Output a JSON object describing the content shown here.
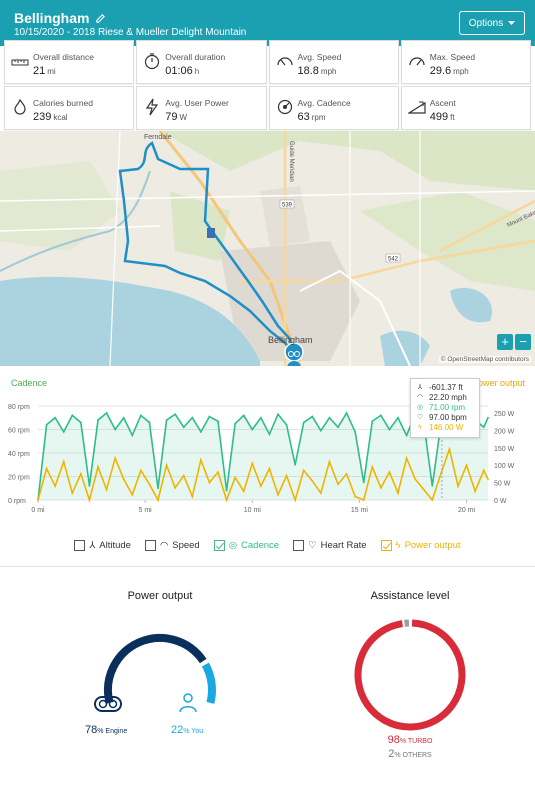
{
  "header": {
    "title": "Bellingham",
    "subtitle": "10/15/2020 - 2018 Riese & Mueller Delight Mountain",
    "options_label": "Options"
  },
  "stats": [
    {
      "icon": "ruler-icon",
      "label": "Overall distance",
      "value": "21",
      "unit": "mi"
    },
    {
      "icon": "stopwatch-icon",
      "label": "Overall duration",
      "value": "01:06",
      "unit": "h"
    },
    {
      "icon": "speedometer-icon",
      "label": "Avg. Speed",
      "value": "18.8",
      "unit": "mph"
    },
    {
      "icon": "speedometer-fast-icon",
      "label": "Max. Speed",
      "value": "29.6",
      "unit": "mph"
    },
    {
      "icon": "flame-icon",
      "label": "Calories burned",
      "value": "239",
      "unit": "kcal"
    },
    {
      "icon": "lightning-icon",
      "label": "Avg. User Power",
      "value": "79",
      "unit": "W"
    },
    {
      "icon": "cadence-icon",
      "label": "Avg. Cadence",
      "value": "63",
      "unit": "rpm"
    },
    {
      "icon": "ascent-icon",
      "label": "Ascent",
      "value": "499",
      "unit": "ft"
    }
  ],
  "map": {
    "attribution": "© OpenStreetMap contributors",
    "place_labels": [
      "Ferndale",
      "Bellingham",
      "Guide Meridian",
      "Mount Baker Hwy"
    ],
    "road_shields": [
      "539",
      "542"
    ],
    "zoom_in": "+",
    "zoom_out": "−"
  },
  "chart": {
    "left_title": "Cadence",
    "right_title": "Power output",
    "tooltip": [
      {
        "icon": "altitude-icon",
        "text": "-601.37 ft",
        "color": "#333333"
      },
      {
        "icon": "speed-icon",
        "text": "22.20 mph",
        "color": "#333333"
      },
      {
        "icon": "cadence-icon",
        "text": "71.00 rpm",
        "color": "#2ebd8a"
      },
      {
        "icon": "heart-icon",
        "text": "97.00 bpm",
        "color": "#333333"
      },
      {
        "icon": "lightning-icon",
        "text": "146.00 W",
        "color": "#f0b400"
      }
    ]
  },
  "chart_data": {
    "type": "line",
    "x_ticks": [
      "0 mi",
      "5 mi",
      "10 mi",
      "15 mi",
      "20 mi"
    ],
    "y_left_ticks": [
      "80 rpm",
      "60 rpm",
      "40 rpm",
      "20 rpm",
      "0 rpm"
    ],
    "y_right_ticks": [
      "250 W",
      "200 W",
      "150 W",
      "100 W",
      "50 W",
      "0 W"
    ],
    "xlim": [
      0,
      21
    ],
    "ylim_left": [
      0,
      80
    ],
    "ylim_right": [
      0,
      270
    ],
    "series": [
      {
        "name": "Cadence",
        "color": "#2ebd8a",
        "x": [
          0,
          0.4,
          0.8,
          1.2,
          1.6,
          2,
          2.4,
          2.8,
          3.2,
          3.6,
          4,
          4.4,
          4.8,
          5.2,
          5.6,
          6,
          6.4,
          6.8,
          7.2,
          7.6,
          8,
          8.4,
          8.8,
          9.2,
          9.6,
          10,
          10.4,
          10.8,
          11.2,
          11.6,
          12,
          12.4,
          12.8,
          13.2,
          13.6,
          14,
          14.4,
          14.8,
          15.2,
          15.6,
          16,
          16.4,
          16.8,
          17.2,
          17.6,
          18,
          18.4,
          18.8,
          19.2,
          19.6,
          20,
          20.4,
          20.8,
          21
        ],
        "y": [
          0,
          64,
          70,
          58,
          72,
          66,
          12,
          68,
          74,
          60,
          70,
          55,
          72,
          66,
          10,
          68,
          73,
          62,
          70,
          58,
          71,
          67,
          8,
          65,
          72,
          60,
          70,
          56,
          73,
          64,
          30,
          66,
          71,
          59,
          70,
          62,
          74,
          58,
          15,
          67,
          72,
          60,
          70,
          55,
          73,
          66,
          12,
          64,
          75,
          58,
          70,
          68,
          62,
          70
        ]
      },
      {
        "name": "Power output",
        "color": "#f0b400",
        "x": [
          0,
          0.4,
          0.8,
          1.2,
          1.6,
          2,
          2.4,
          2.8,
          3.2,
          3.6,
          4,
          4.4,
          4.8,
          5.2,
          5.6,
          6,
          6.4,
          6.8,
          7.2,
          7.6,
          8,
          8.4,
          8.8,
          9.2,
          9.6,
          10,
          10.4,
          10.8,
          11.2,
          11.6,
          12,
          12.4,
          12.8,
          13.2,
          13.6,
          14,
          14.4,
          14.8,
          15.2,
          15.6,
          16,
          16.4,
          16.8,
          17.2,
          17.6,
          18,
          18.4,
          18.8,
          19.2,
          19.6,
          20,
          20.4,
          20.8,
          21
        ],
        "y": [
          0,
          90,
          40,
          110,
          20,
          75,
          0,
          95,
          30,
          120,
          60,
          15,
          85,
          45,
          0,
          100,
          35,
          70,
          10,
          115,
          50,
          80,
          0,
          65,
          25,
          105,
          40,
          90,
          15,
          70,
          0,
          85,
          55,
          20,
          110,
          45,
          75,
          10,
          0,
          95,
          35,
          80,
          20,
          120,
          60,
          30,
          0,
          75,
          146,
          40,
          100,
          25,
          85,
          60
        ]
      }
    ]
  },
  "legend": [
    {
      "label": "Altitude",
      "icon": "altitude-icon",
      "checked": false,
      "color": "#333333"
    },
    {
      "label": "Speed",
      "icon": "speed-icon",
      "checked": false,
      "color": "#333333"
    },
    {
      "label": "Cadence",
      "icon": "cadence-icon",
      "checked": true,
      "color": "#2ebd8a"
    },
    {
      "label": "Heart Rate",
      "icon": "heart-icon",
      "checked": false,
      "color": "#333333"
    },
    {
      "label": "Power output",
      "icon": "lightning-icon",
      "checked": true,
      "color": "#f0b400"
    }
  ],
  "power": {
    "title": "Power output",
    "engine_pct": "78",
    "engine_label": "% Engine",
    "you_pct": "22",
    "you_label": "% You",
    "engine_fraction": 0.78,
    "engine_color": "#0a2f5c",
    "you_color": "#1aa8e0"
  },
  "assist": {
    "title": "Assistance level",
    "turbo_pct": "98",
    "turbo_label": "% TURBO",
    "others_pct": "2",
    "others_label": "% OTHERS",
    "turbo_fraction": 0.98,
    "turbo_color": "#d92b3a",
    "others_color": "#9e9e9e"
  }
}
